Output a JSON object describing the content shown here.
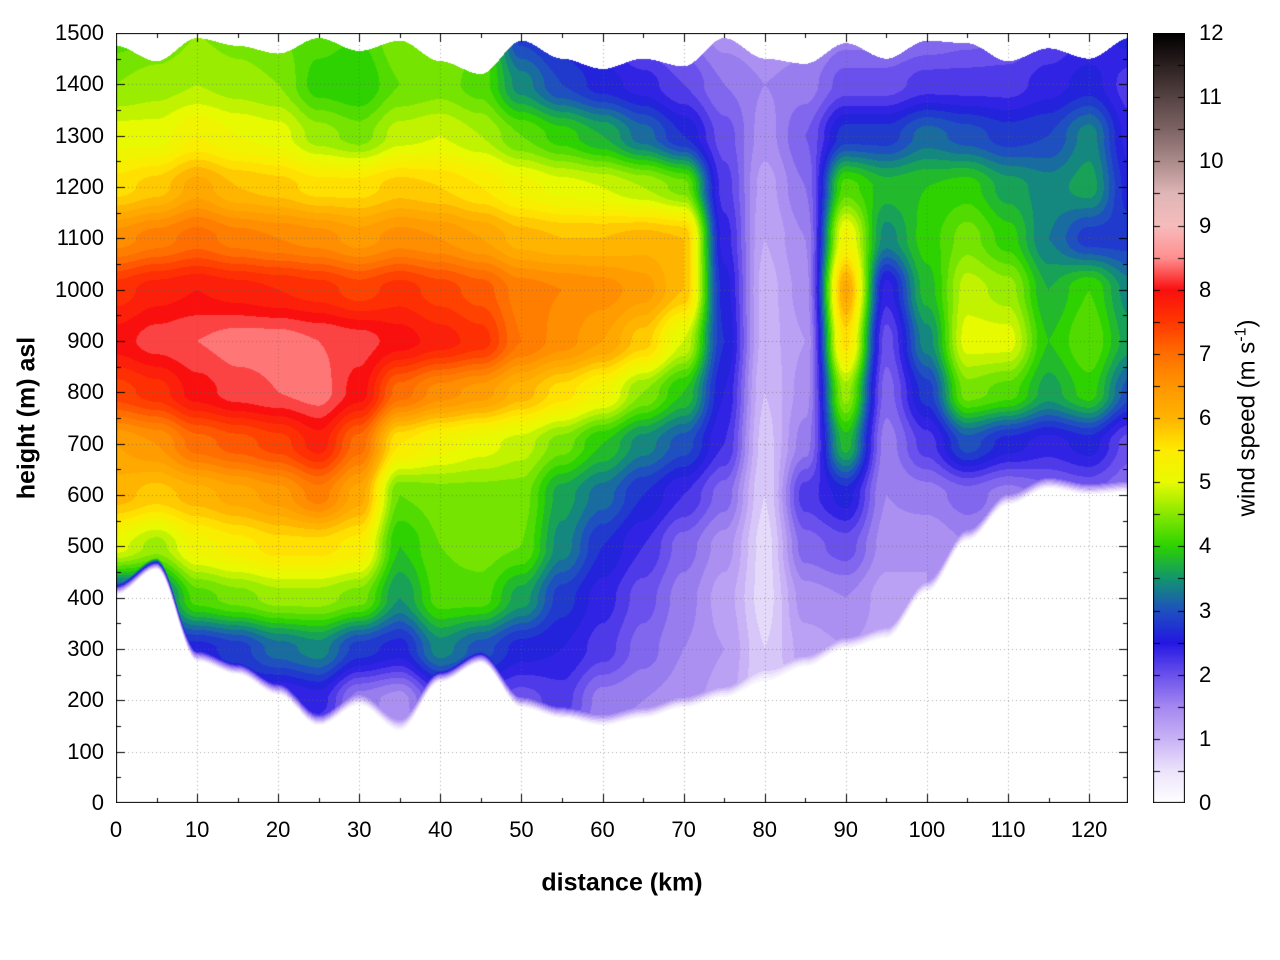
{
  "figure": {
    "xlabel": "distance (km)",
    "ylabel": "height (m) asl",
    "cblabel_pre": "wind speed (m s",
    "cblabel_sup": "-1",
    "cblabel_post": ")"
  },
  "chart_data": {
    "type": "heatmap",
    "title": "",
    "xlabel": "distance (km)",
    "ylabel": "height (m) asl",
    "colorbar_label": "wind speed (m s^-1)",
    "xlim": [
      0,
      124.8
    ],
    "ylim": [
      0,
      1500
    ],
    "zlim": [
      0,
      12
    ],
    "grid": true,
    "x_ticks": [
      0,
      10,
      20,
      30,
      40,
      50,
      60,
      70,
      80,
      90,
      100,
      110,
      120
    ],
    "x_minor_step": 5,
    "y_ticks": [
      0,
      100,
      200,
      300,
      400,
      500,
      600,
      700,
      800,
      900,
      1000,
      1100,
      1200,
      1300,
      1400,
      1500
    ],
    "y_minor_step": 50,
    "cb_ticks": [
      0,
      1,
      2,
      3,
      4,
      5,
      6,
      7,
      8,
      9,
      10,
      11,
      12
    ],
    "cb_minor_step": 0.5,
    "x_km": [
      0,
      5,
      10,
      15,
      20,
      25,
      30,
      35,
      40,
      45,
      50,
      55,
      60,
      65,
      70,
      75,
      80,
      85,
      90,
      95,
      100,
      105,
      110,
      115,
      120,
      125
    ],
    "y_m": [
      0,
      100,
      200,
      300,
      400,
      500,
      600,
      700,
      800,
      900,
      1000,
      1100,
      1200,
      1300,
      1400,
      1500
    ],
    "wind_speed": [
      [
        2.0,
        2.0,
        1.8,
        1.8,
        1.8,
        1.6,
        1.2,
        1.0,
        1.6,
        1.6,
        1.4,
        1.4,
        1.2,
        1.1,
        1.0,
        1.0,
        0.6,
        0.9,
        1.0,
        0.9,
        0.9,
        1.0,
        1.0,
        1.0,
        1.0,
        1.0
      ],
      [
        2.2,
        2.2,
        2.0,
        2.0,
        2.0,
        1.8,
        1.4,
        1.2,
        1.8,
        1.8,
        1.6,
        1.6,
        1.4,
        1.3,
        1.2,
        1.1,
        0.6,
        1.0,
        1.1,
        1.0,
        1.0,
        1.1,
        1.1,
        1.1,
        1.1,
        1.1
      ],
      [
        2.4,
        2.4,
        2.2,
        2.4,
        2.2,
        2.4,
        1.6,
        1.4,
        2.2,
        2.2,
        2.0,
        2.2,
        1.6,
        1.5,
        1.4,
        1.2,
        0.7,
        1.1,
        1.2,
        1.1,
        1.1,
        1.2,
        1.2,
        1.2,
        1.2,
        1.2
      ],
      [
        2.6,
        2.6,
        2.6,
        2.8,
        3.2,
        3.4,
        2.8,
        2.6,
        3.4,
        3.0,
        2.6,
        2.5,
        2.2,
        1.8,
        1.5,
        1.3,
        0.7,
        1.2,
        1.3,
        1.2,
        1.2,
        1.3,
        1.3,
        1.3,
        1.3,
        1.3
      ],
      [
        2.8,
        3.0,
        4.2,
        4.4,
        4.6,
        4.6,
        4.4,
        3.5,
        4.2,
        4.2,
        3.6,
        2.8,
        2.4,
        2.0,
        1.6,
        1.2,
        0.6,
        1.4,
        1.5,
        1.2,
        1.3,
        1.4,
        1.4,
        1.4,
        1.4,
        1.4
      ],
      [
        5.0,
        4.6,
        5.2,
        5.4,
        5.6,
        5.6,
        5.4,
        3.9,
        4.3,
        4.4,
        4.3,
        3.4,
        2.7,
        2.3,
        1.8,
        1.4,
        0.6,
        1.8,
        2.0,
        1.4,
        1.3,
        1.5,
        1.5,
        1.5,
        1.5,
        1.5
      ],
      [
        6.0,
        5.8,
        6.0,
        6.2,
        6.4,
        6.8,
        6.2,
        4.3,
        4.4,
        4.4,
        4.4,
        3.6,
        3.2,
        2.7,
        2.3,
        1.8,
        0.7,
        2.2,
        2.6,
        1.5,
        1.6,
        1.8,
        1.6,
        1.8,
        1.9,
        1.7
      ],
      [
        6.3,
        6.5,
        7.0,
        7.2,
        7.4,
        7.8,
        7.0,
        5.5,
        5.2,
        5.0,
        4.8,
        4.4,
        3.9,
        3.4,
        3.0,
        2.3,
        0.8,
        1.6,
        3.8,
        1.6,
        2.2,
        3.0,
        2.6,
        2.4,
        2.6,
        2.0
      ],
      [
        7.4,
        7.6,
        8.0,
        8.2,
        8.3,
        8.4,
        8.0,
        7.0,
        6.6,
        6.4,
        6.0,
        5.6,
        5.2,
        4.5,
        3.9,
        2.5,
        0.9,
        1.4,
        4.6,
        1.8,
        2.8,
        4.4,
        4.2,
        3.6,
        4.0,
        3.0
      ],
      [
        8.0,
        8.2,
        8.3,
        8.4,
        8.4,
        8.3,
        8.2,
        8.0,
        7.8,
        7.6,
        6.9,
        6.6,
        6.3,
        5.8,
        4.9,
        2.7,
        1.0,
        1.3,
        5.6,
        2.0,
        3.4,
        5.0,
        5.0,
        3.9,
        4.3,
        3.6
      ],
      [
        7.6,
        7.8,
        7.9,
        7.8,
        7.7,
        7.6,
        7.4,
        7.6,
        7.4,
        7.2,
        6.8,
        6.7,
        6.6,
        6.4,
        5.9,
        2.6,
        1.0,
        1.4,
        6.2,
        2.4,
        3.8,
        4.8,
        4.6,
        3.7,
        4.1,
        3.4
      ],
      [
        6.6,
        6.8,
        7.0,
        6.8,
        6.7,
        6.6,
        6.4,
        6.6,
        6.5,
        6.3,
        6.0,
        5.9,
        5.9,
        6.0,
        5.9,
        2.4,
        1.1,
        1.5,
        5.2,
        3.4,
        4.0,
        4.4,
        4.0,
        3.3,
        2.8,
        2.8
      ],
      [
        5.6,
        5.8,
        6.2,
        5.9,
        5.8,
        5.6,
        5.6,
        5.8,
        5.7,
        5.5,
        5.2,
        5.0,
        4.9,
        4.7,
        4.4,
        2.2,
        1.2,
        1.7,
        4.2,
        3.8,
        3.9,
        4.0,
        3.6,
        3.4,
        3.6,
        2.6
      ],
      [
        5.0,
        5.0,
        5.3,
        5.1,
        5.0,
        4.6,
        4.4,
        4.8,
        4.9,
        4.7,
        4.3,
        4.0,
        3.7,
        3.2,
        2.7,
        2.0,
        1.4,
        1.9,
        2.8,
        2.8,
        3.2,
        3.0,
        2.8,
        2.9,
        3.4,
        2.4
      ],
      [
        4.5,
        4.6,
        4.7,
        4.6,
        4.5,
        4.0,
        3.9,
        4.3,
        4.4,
        4.2,
        3.4,
        2.9,
        2.6,
        2.4,
        2.1,
        1.7,
        1.5,
        1.6,
        2.0,
        2.0,
        2.2,
        2.2,
        2.2,
        2.4,
        2.6,
        2.2
      ],
      [
        4.2,
        4.3,
        4.5,
        4.4,
        4.3,
        4.2,
        4.1,
        4.5,
        4.6,
        4.3,
        2.8,
        2.5,
        2.3,
        1.9,
        1.7,
        1.4,
        1.3,
        1.4,
        1.6,
        1.6,
        1.7,
        1.8,
        1.9,
        2.1,
        2.3,
        2.6
      ]
    ],
    "terrain_m": [
      405,
      455,
      275,
      250,
      210,
      150,
      190,
      140,
      235,
      272,
      185,
      165,
      150,
      165,
      185,
      205,
      235,
      265,
      300,
      320,
      410,
      510,
      580,
      612,
      600,
      605
    ],
    "top_boundary_m": [
      1475,
      1445,
      1490,
      1475,
      1460,
      1490,
      1465,
      1485,
      1445,
      1420,
      1485,
      1450,
      1430,
      1450,
      1435,
      1490,
      1450,
      1440,
      1480,
      1450,
      1485,
      1480,
      1445,
      1470,
      1450,
      1490
    ],
    "palette": [
      [
        0.0,
        "#ffffff"
      ],
      [
        0.5,
        "#ece4fb"
      ],
      [
        1.0,
        "#c9b2f6"
      ],
      [
        1.5,
        "#a488f0"
      ],
      [
        2.0,
        "#6a50ec"
      ],
      [
        2.5,
        "#2318e2"
      ],
      [
        3.0,
        "#1e50c0"
      ],
      [
        3.5,
        "#12966e"
      ],
      [
        4.0,
        "#2dd200"
      ],
      [
        4.5,
        "#87e800"
      ],
      [
        5.0,
        "#e8fa00"
      ],
      [
        5.5,
        "#ffeb00"
      ],
      [
        6.0,
        "#ffb400"
      ],
      [
        6.5,
        "#ff9600"
      ],
      [
        7.0,
        "#ff6e00"
      ],
      [
        7.5,
        "#ff3700"
      ],
      [
        8.0,
        "#fa0f0f"
      ],
      [
        8.5,
        "#ff9090"
      ],
      [
        9.0,
        "#f6bcbc"
      ],
      [
        9.5,
        "#dfb6b6"
      ],
      [
        10.0,
        "#ab8b8b"
      ],
      [
        10.5,
        "#7d6464"
      ],
      [
        11.0,
        "#564343"
      ],
      [
        11.5,
        "#2b2020"
      ],
      [
        12.0,
        "#000000"
      ]
    ]
  }
}
